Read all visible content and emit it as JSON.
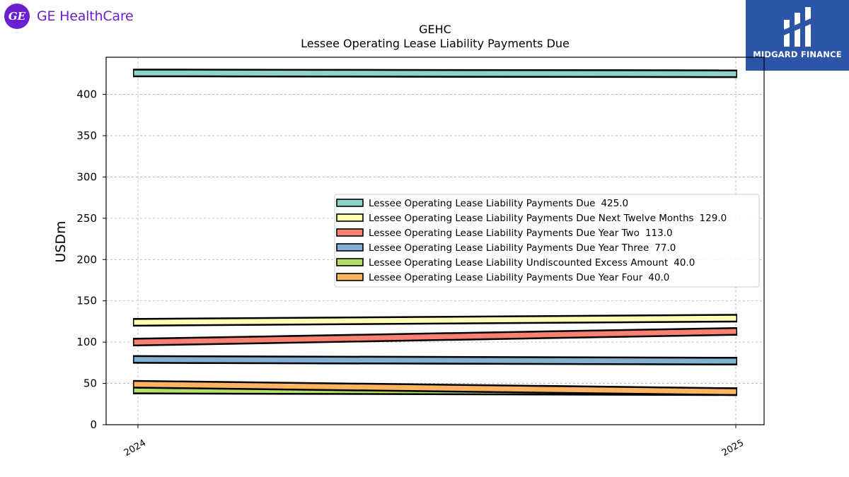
{
  "logos": {
    "ge_mark": "GE",
    "ge_name": "GE HealthCare",
    "ge_color": "#6a1fd0",
    "midgard_name": "MIDGARD FINANCE",
    "midgard_color": "#2c55a8"
  },
  "chart_data": {
    "type": "line",
    "title": "GEHC",
    "subtitle": "Lessee Operating Lease Liability Payments Due",
    "xlabel": "",
    "ylabel": "USDm",
    "categories": [
      "2024",
      "2025"
    ],
    "ylim": [
      0,
      445
    ],
    "yticks": [
      0,
      50,
      100,
      150,
      200,
      250,
      300,
      350,
      400
    ],
    "grid": true,
    "legend_position": "center-right",
    "series": [
      {
        "name": "Lessee Operating Lease Liability Payments Due",
        "legend_value": "425.0",
        "values": [
          426,
          425
        ],
        "color": "#8dd3c7"
      },
      {
        "name": "Lessee Operating Lease Liability Payments Due Next Twelve Months",
        "legend_value": "129.0",
        "values": [
          124,
          129
        ],
        "color": "#ffffb3"
      },
      {
        "name": "Lessee Operating Lease Liability Payments Due Year Two",
        "legend_value": "113.0",
        "values": [
          100,
          113
        ],
        "color": "#fb8072"
      },
      {
        "name": "Lessee Operating Lease Liability Payments Due Year Three",
        "legend_value": "77.0",
        "values": [
          79,
          77
        ],
        "color": "#80b1d3"
      },
      {
        "name": "Lessee Operating Lease Liability Undiscounted Excess Amount",
        "legend_value": "40.0",
        "values": [
          42,
          40
        ],
        "color": "#b3de69"
      },
      {
        "name": "Lessee Operating Lease Liability Payments Due Year Four",
        "legend_value": "40.0",
        "values": [
          49,
          40
        ],
        "color": "#fdb462"
      }
    ]
  }
}
